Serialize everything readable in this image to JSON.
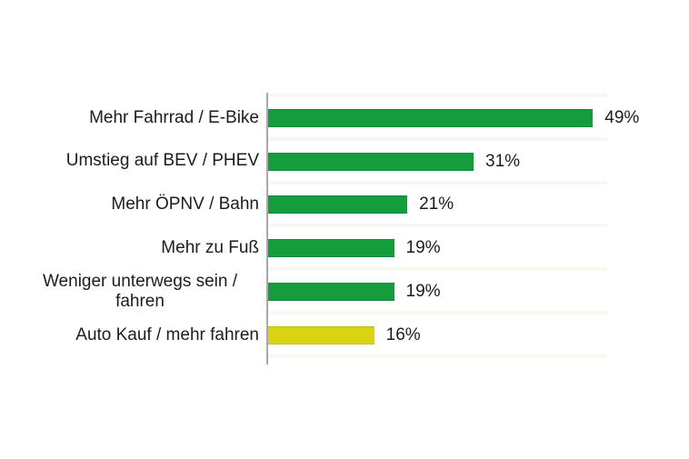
{
  "page": {
    "background": "#FFFFFF"
  },
  "chart_data": {
    "type": "bar",
    "orientation": "horizontal",
    "categories": [
      "Mehr Fahrrad / E-Bike",
      "Umstieg auf BEV / PHEV",
      "Mehr ÖPNV / Bahn",
      "Mehr zu Fuß",
      "Weniger unterwegs sein / fahren",
      "Auto Kauf / mehr fahren"
    ],
    "values": [
      49,
      31,
      21,
      19,
      19,
      16
    ],
    "value_labels": [
      "49%",
      "31%",
      "21%",
      "19%",
      "19%",
      "16%"
    ],
    "bar_colors": [
      "#159C3D",
      "#159C3D",
      "#159C3D",
      "#159C3D",
      "#159C3D",
      "#D8D414"
    ],
    "xlim": [
      0,
      55
    ],
    "grid": false,
    "legend": "none",
    "axis_line_color": "#A9A9A9",
    "text_color": "#1C1C1C",
    "accent_green": "#159C3D",
    "accent_yellow": "#D8D414"
  }
}
